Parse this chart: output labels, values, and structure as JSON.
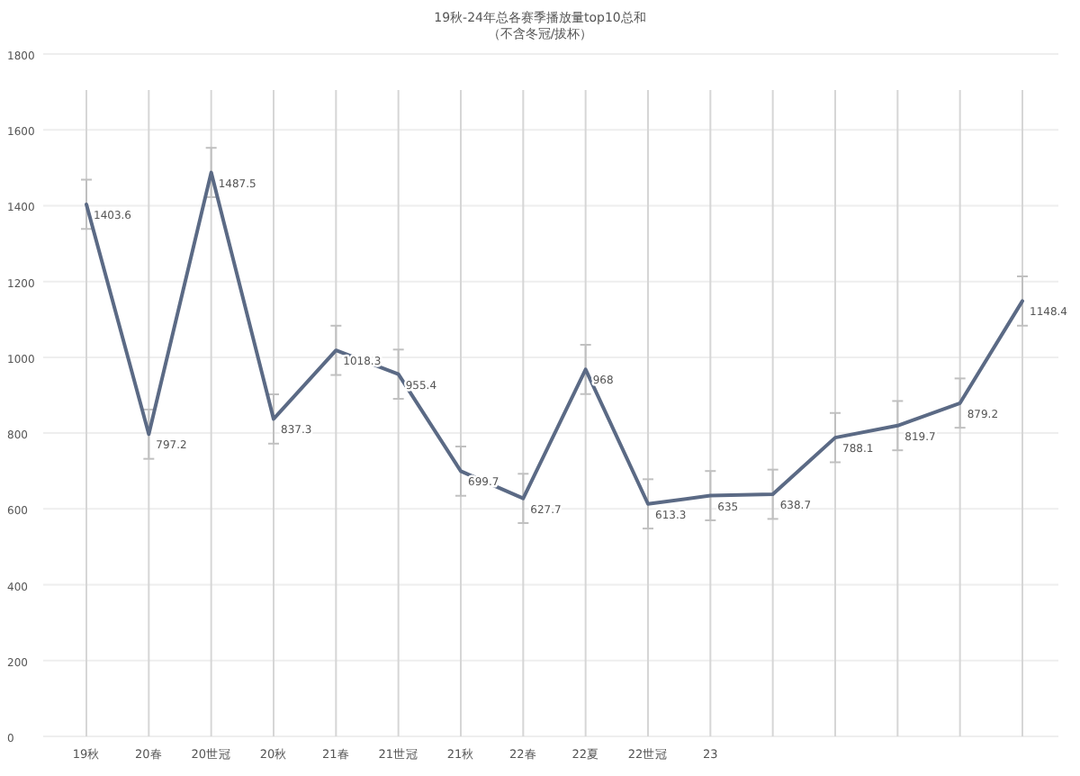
{
  "chart_data": {
    "type": "line",
    "title": "19秋-24年总各赛季播放量top10总和",
    "subtitle": "（不含冬冠/拔杯）",
    "categories": [
      "19秋",
      "20春",
      "20世冠",
      "20秋",
      "21春",
      "21世冠",
      "21秋",
      "22春",
      "22夏",
      "22世冠",
      "23",
      null,
      null,
      null,
      null,
      null
    ],
    "series": [
      {
        "color": "#5b6a85",
        "values": [
          1403.6,
          797.2,
          1487.5,
          837.3,
          1018.3,
          955.4,
          699.7,
          627.7,
          968,
          613.3,
          635,
          638.7,
          788.1,
          819.7,
          879.2,
          1148.4
        ],
        "errors": [
          65,
          65,
          65,
          65,
          65,
          65,
          65,
          65,
          65,
          65,
          65,
          65,
          65,
          65,
          65,
          65
        ]
      }
    ],
    "ylim": [
      0,
      1800
    ],
    "yticks": [
      0,
      200,
      400,
      600,
      800,
      1000,
      1200,
      1400,
      1600,
      1800
    ],
    "grid": true,
    "data_labels": true,
    "marker": "none",
    "line_style": "solid"
  }
}
